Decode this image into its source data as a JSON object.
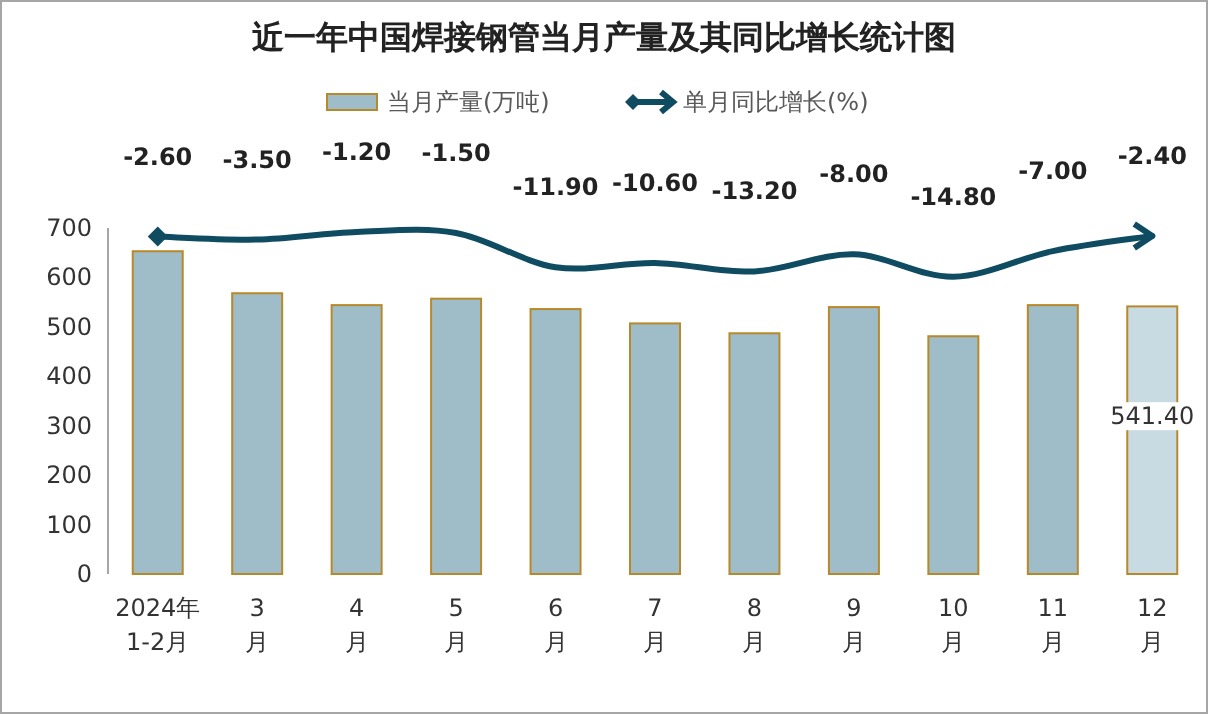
{
  "chart_data": {
    "type": "bar",
    "title": "近一年中国焊接钢管当月产量及其同比增长统计图",
    "categories": [
      "2024年\n1-2月",
      "3\n月",
      "4\n月",
      "5\n月",
      "6\n月",
      "7\n月",
      "8\n月",
      "9\n月",
      "10\n月",
      "11\n月",
      "12\n月"
    ],
    "series": [
      {
        "name": "当月产量(万吨)",
        "colors": [
          "#9fbcc9",
          "#9fbcc9",
          "#9fbcc9",
          "#9fbcc9",
          "#9fbcc9",
          "#9fbcc9",
          "#9fbcc9",
          "#9fbcc9",
          "#9fbcc9",
          "#9fbcc9",
          "#c8dbe3"
        ],
        "values": [
          653,
          568,
          544,
          557,
          536,
          507,
          487,
          540,
          481,
          544,
          541.4
        ],
        "value_labels": [
          null,
          null,
          null,
          null,
          null,
          null,
          null,
          null,
          null,
          null,
          "541.40"
        ]
      },
      {
        "name": "单月同比增长(%)",
        "type": "line",
        "axis": "y2",
        "color": "#0f4c62",
        "values": [
          -2.6,
          -3.5,
          -1.2,
          -1.5,
          -11.9,
          -10.6,
          -13.2,
          -8.0,
          -14.8,
          -7.0,
          -2.4
        ],
        "value_labels": [
          "-2.60",
          "-3.50",
          "-1.20",
          "-1.50",
          "-11.90",
          "-10.60",
          "-13.20",
          "-8.00",
          "-14.80",
          "-7.00",
          "-2.40"
        ]
      }
    ],
    "ylim": [
      0,
      700
    ],
    "yticks": [
      0,
      100,
      200,
      300,
      400,
      500,
      600,
      700
    ],
    "y2lim": [
      -105,
      0
    ],
    "legend": "top"
  }
}
